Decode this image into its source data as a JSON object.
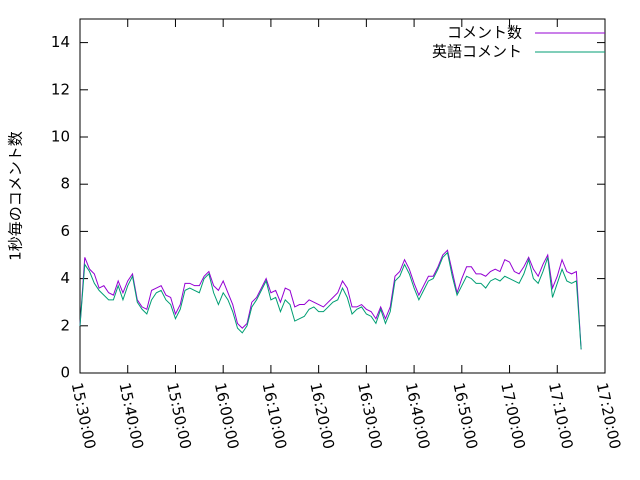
{
  "chart_data": {
    "type": "line",
    "ylabel": "1秒毎のコメント数",
    "x": [
      "15:30:00",
      "15:31:00",
      "15:32:00",
      "15:33:00",
      "15:34:00",
      "15:35:00",
      "15:36:00",
      "15:37:00",
      "15:38:00",
      "15:39:00",
      "15:40:00",
      "15:41:00",
      "15:42:00",
      "15:43:00",
      "15:44:00",
      "15:45:00",
      "15:46:00",
      "15:47:00",
      "15:48:00",
      "15:49:00",
      "15:50:00",
      "15:51:00",
      "15:52:00",
      "15:53:00",
      "15:54:00",
      "15:55:00",
      "15:56:00",
      "15:57:00",
      "15:58:00",
      "15:59:00",
      "16:00:00",
      "16:01:00",
      "16:02:00",
      "16:03:00",
      "16:04:00",
      "16:05:00",
      "16:06:00",
      "16:07:00",
      "16:08:00",
      "16:09:00",
      "16:10:00",
      "16:11:00",
      "16:12:00",
      "16:13:00",
      "16:14:00",
      "16:15:00",
      "16:16:00",
      "16:17:00",
      "16:18:00",
      "16:19:00",
      "16:20:00",
      "16:21:00",
      "16:22:00",
      "16:23:00",
      "16:24:00",
      "16:25:00",
      "16:26:00",
      "16:27:00",
      "16:28:00",
      "16:29:00",
      "16:30:00",
      "16:31:00",
      "16:32:00",
      "16:33:00",
      "16:34:00",
      "16:35:00",
      "16:36:00",
      "16:37:00",
      "16:38:00",
      "16:39:00",
      "16:40:00",
      "16:41:00",
      "16:42:00",
      "16:43:00",
      "16:44:00",
      "16:45:00",
      "16:46:00",
      "16:47:00",
      "16:48:00",
      "16:49:00",
      "16:50:00",
      "16:51:00",
      "16:52:00",
      "16:53:00",
      "16:54:00",
      "16:55:00",
      "16:56:00",
      "16:57:00",
      "16:58:00",
      "16:59:00",
      "17:00:00",
      "17:01:00",
      "17:02:00",
      "17:03:00",
      "17:04:00",
      "17:05:00",
      "17:06:00",
      "17:07:00",
      "17:08:00",
      "17:09:00",
      "17:10:00",
      "17:11:00",
      "17:12:00",
      "17:13:00",
      "17:14:00",
      "17:15:00"
    ],
    "series": [
      {
        "name": "コメント数",
        "color": "#9400d3",
        "values": [
          2.0,
          4.9,
          4.4,
          4.2,
          3.6,
          3.7,
          3.4,
          3.3,
          3.9,
          3.4,
          3.9,
          4.2,
          3.1,
          2.8,
          2.7,
          3.5,
          3.6,
          3.7,
          3.3,
          3.2,
          2.5,
          2.9,
          3.8,
          3.8,
          3.7,
          3.7,
          4.1,
          4.3,
          3.7,
          3.5,
          3.9,
          3.4,
          2.9,
          2.1,
          1.9,
          2.1,
          3.0,
          3.2,
          3.6,
          4.0,
          3.4,
          3.5,
          3.0,
          3.6,
          3.5,
          2.8,
          2.9,
          2.9,
          3.1,
          3.0,
          2.9,
          2.8,
          3.0,
          3.2,
          3.4,
          3.9,
          3.6,
          2.8,
          2.8,
          2.9,
          2.7,
          2.6,
          2.3,
          2.8,
          2.3,
          2.8,
          4.1,
          4.3,
          4.8,
          4.4,
          3.8,
          3.3,
          3.7,
          4.1,
          4.1,
          4.5,
          5.0,
          5.2,
          4.3,
          3.4,
          4.0,
          4.5,
          4.5,
          4.2,
          4.2,
          4.1,
          4.3,
          4.4,
          4.3,
          4.8,
          4.7,
          4.3,
          4.2,
          4.5,
          4.9,
          4.4,
          4.1,
          4.6,
          5.0,
          3.6,
          4.1,
          4.8,
          4.3,
          4.2,
          4.3,
          1.0
        ]
      },
      {
        "name": "英語コメント",
        "color": "#009e73",
        "values": [
          2.0,
          4.6,
          4.3,
          3.8,
          3.5,
          3.3,
          3.1,
          3.1,
          3.7,
          3.1,
          3.7,
          4.1,
          3.0,
          2.7,
          2.5,
          3.1,
          3.4,
          3.5,
          3.1,
          2.9,
          2.3,
          2.7,
          3.5,
          3.6,
          3.5,
          3.4,
          4.0,
          4.2,
          3.4,
          2.9,
          3.4,
          3.1,
          2.6,
          1.9,
          1.7,
          2.0,
          2.8,
          3.1,
          3.5,
          3.9,
          3.1,
          3.2,
          2.6,
          3.1,
          2.9,
          2.2,
          2.3,
          2.4,
          2.7,
          2.8,
          2.6,
          2.6,
          2.8,
          3.0,
          3.1,
          3.6,
          3.2,
          2.5,
          2.7,
          2.8,
          2.5,
          2.4,
          2.1,
          2.7,
          2.1,
          2.6,
          3.9,
          4.1,
          4.6,
          4.2,
          3.6,
          3.1,
          3.5,
          3.9,
          4.0,
          4.4,
          4.9,
          5.1,
          4.1,
          3.3,
          3.7,
          4.1,
          4.0,
          3.8,
          3.8,
          3.6,
          3.9,
          4.0,
          3.9,
          4.1,
          4.0,
          3.9,
          3.8,
          4.2,
          4.8,
          4.0,
          3.8,
          4.3,
          4.9,
          3.2,
          3.8,
          4.4,
          3.9,
          3.8,
          3.9,
          1.0
        ]
      }
    ],
    "xlim": [
      "15:30:00",
      "17:20:00"
    ],
    "xticks": [
      "15:30:00",
      "15:40:00",
      "15:50:00",
      "16:00:00",
      "16:10:00",
      "16:20:00",
      "16:30:00",
      "16:40:00",
      "16:50:00",
      "17:00:00",
      "17:10:00",
      "17:20:00"
    ],
    "ylim": [
      0,
      15
    ],
    "yticks": [
      0,
      2,
      4,
      6,
      8,
      10,
      12,
      14
    ],
    "legend": "top-right"
  }
}
